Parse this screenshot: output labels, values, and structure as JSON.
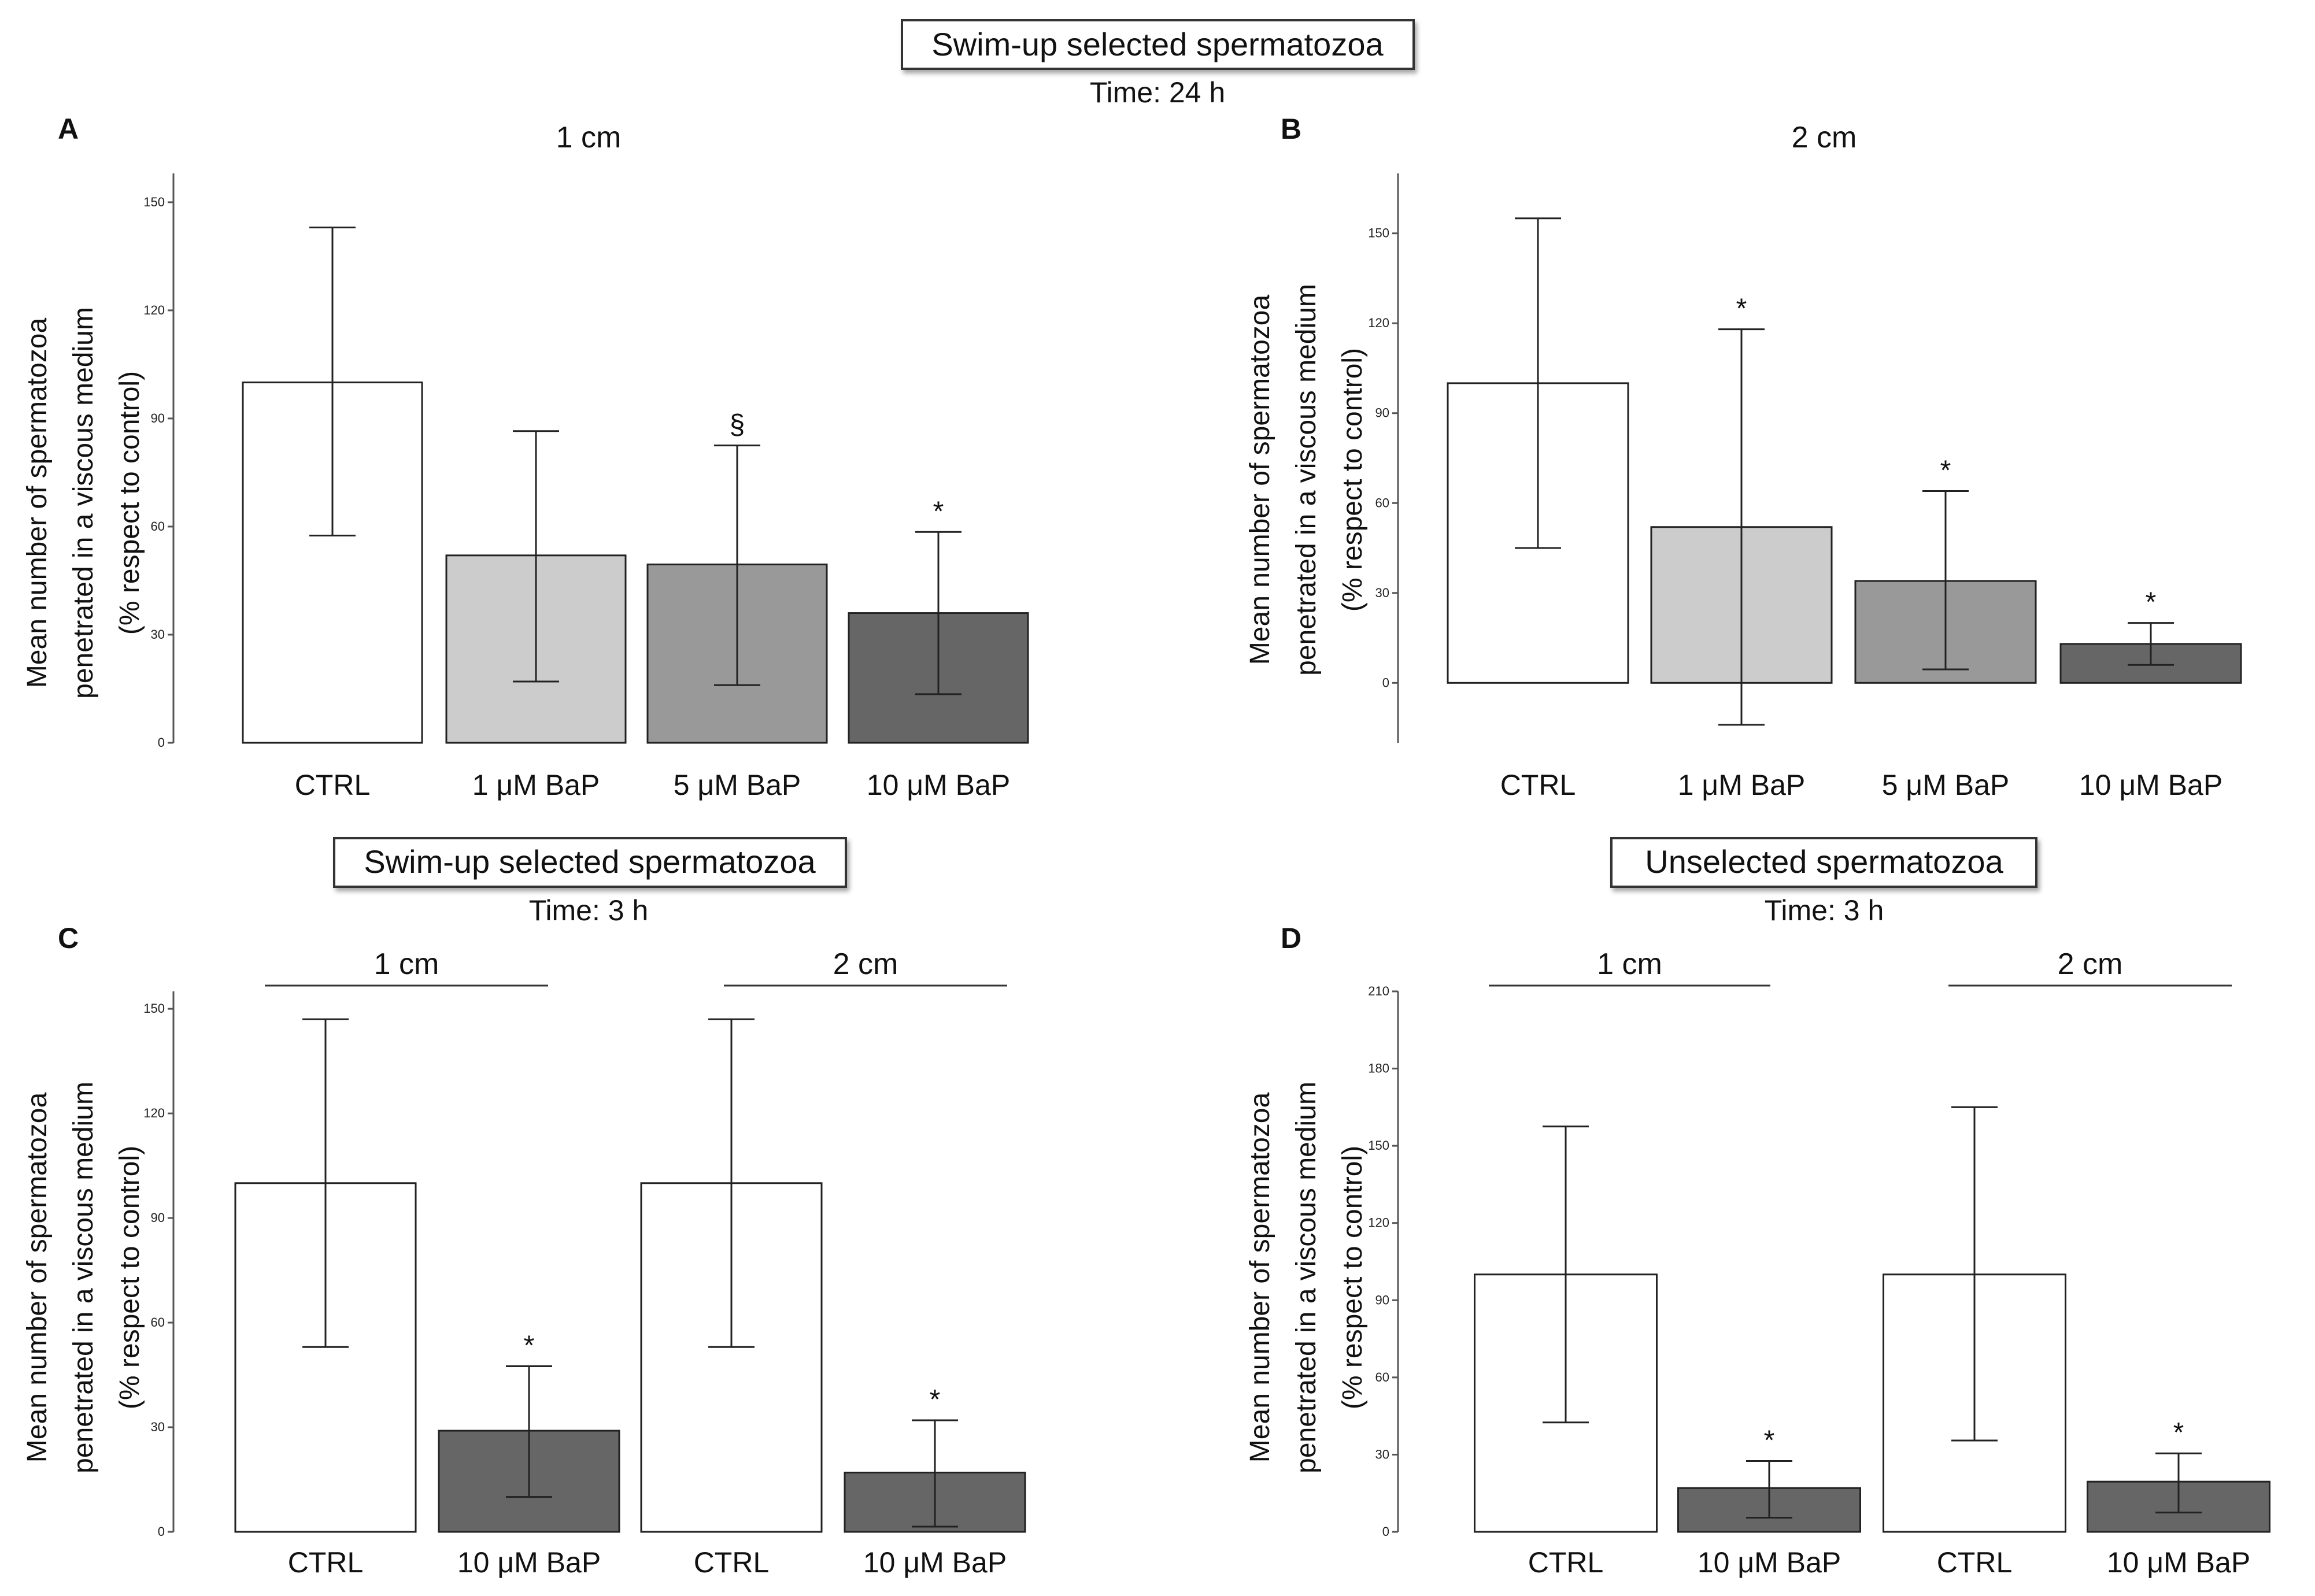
{
  "figure_header": {
    "title": "Swim-up selected spermatozoa",
    "subtitle": "Time: 24 h"
  },
  "chart_data": [
    {
      "panel": "A",
      "type": "bar",
      "title": "1 cm",
      "ylabel": [
        "Mean number of spermatozoa",
        "penetrated in a viscous medium",
        "(% respect to control)"
      ],
      "ylim": [
        0,
        158
      ],
      "yticks": [
        0,
        30,
        60,
        90,
        120,
        150
      ],
      "categories": [
        "CTRL",
        "1 μM BaP",
        "5 μM BaP",
        "10 μM BaP"
      ],
      "values": [
        100,
        52,
        49.5,
        36
      ],
      "error_low": [
        57.5,
        17,
        16,
        13.5
      ],
      "error_high": [
        143,
        86.5,
        82.5,
        58.5
      ],
      "fills": [
        "#ffffff",
        "#cccccc",
        "#999999",
        "#666666"
      ],
      "markers": [
        "",
        "",
        "§",
        "*"
      ]
    },
    {
      "panel": "B",
      "type": "bar",
      "title": "2 cm",
      "ylabel": [
        "Mean number of spermatozoa",
        "penetrated in a viscous medium",
        "(% respect to control)"
      ],
      "ylim": [
        -20,
        170
      ],
      "yticks": [
        0,
        30,
        60,
        90,
        120,
        150
      ],
      "categories": [
        "CTRL",
        "1 μM BaP",
        "5 μM BaP",
        "10 μM BaP"
      ],
      "values": [
        100,
        52,
        34,
        13
      ],
      "error_low": [
        45,
        -14,
        4.5,
        6
      ],
      "error_high": [
        155,
        118,
        64,
        20
      ],
      "fills": [
        "#ffffff",
        "#cccccc",
        "#999999",
        "#666666"
      ],
      "markers": [
        "",
        "*",
        "*",
        "*"
      ]
    },
    {
      "panel": "C",
      "type": "bar",
      "header": {
        "title": "Swim-up selected spermatozoa",
        "subtitle": "Time: 3 h"
      },
      "groups": [
        "1 cm",
        "2 cm"
      ],
      "ylabel": [
        "Mean number of spermatozoa",
        "penetrated in a viscous medium",
        "(% respect to control)"
      ],
      "ylim": [
        0,
        155
      ],
      "yticks": [
        0,
        30,
        60,
        90,
        120,
        150
      ],
      "categories": [
        "CTRL",
        "10 μM BaP",
        "CTRL",
        "10 μM BaP"
      ],
      "values": [
        100,
        29,
        100,
        17
      ],
      "error_low": [
        53,
        10,
        53,
        1.5
      ],
      "error_high": [
        147,
        47.5,
        147,
        32
      ],
      "fills": [
        "#ffffff",
        "#666666",
        "#ffffff",
        "#666666"
      ],
      "markers": [
        "",
        "*",
        "",
        "*"
      ]
    },
    {
      "panel": "D",
      "type": "bar",
      "header": {
        "title": "Unselected spermatozoa",
        "subtitle": "Time: 3 h"
      },
      "groups": [
        "1 cm",
        "2 cm"
      ],
      "ylabel": [
        "Mean number of spermatozoa",
        "penetrated in a viscous medium",
        "(% respect to control)"
      ],
      "ylim": [
        0,
        210
      ],
      "yticks": [
        0,
        30,
        60,
        90,
        120,
        150,
        180,
        210
      ],
      "categories": [
        "CTRL",
        "10 μM BaP",
        "CTRL",
        "10 μM BaP"
      ],
      "values": [
        100,
        17,
        100,
        19.5
      ],
      "error_low": [
        42.5,
        5.5,
        35.5,
        7.5
      ],
      "error_high": [
        157.5,
        27.5,
        165,
        30.5
      ],
      "fills": [
        "#ffffff",
        "#666666",
        "#ffffff",
        "#666666"
      ],
      "markers": [
        "",
        "*",
        "",
        "*"
      ]
    }
  ]
}
